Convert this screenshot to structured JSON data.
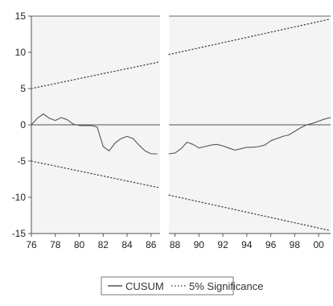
{
  "chart_data": {
    "type": "line",
    "title": "",
    "xlabel": "",
    "ylabel": "",
    "xlim": [
      1976,
      2001
    ],
    "ylim": [
      -15,
      15
    ],
    "gap": [
      1986.75,
      1987.5
    ],
    "x_ticks": [
      {
        "value": 1976,
        "label": "76"
      },
      {
        "value": 1978,
        "label": "78"
      },
      {
        "value": 1980,
        "label": "80"
      },
      {
        "value": 1982,
        "label": "82"
      },
      {
        "value": 1984,
        "label": "84"
      },
      {
        "value": 1986,
        "label": "86"
      },
      {
        "value": 1988,
        "label": "88"
      },
      {
        "value": 1990,
        "label": "90"
      },
      {
        "value": 1992,
        "label": "92"
      },
      {
        "value": 1994,
        "label": "94"
      },
      {
        "value": 1996,
        "label": "96"
      },
      {
        "value": 1998,
        "label": "98"
      },
      {
        "value": 2000,
        "label": "00"
      }
    ],
    "y_ticks": [
      {
        "value": -15,
        "label": "-15"
      },
      {
        "value": -10,
        "label": "-10"
      },
      {
        "value": -5,
        "label": "-5"
      },
      {
        "value": 0,
        "label": "0"
      },
      {
        "value": 5,
        "label": "5"
      },
      {
        "value": 10,
        "label": "10"
      },
      {
        "value": 15,
        "label": "15"
      }
    ],
    "series": [
      {
        "name": "CUSUM",
        "style": "solid",
        "color": "#555555",
        "segments": [
          {
            "x": [
              1976.0,
              1976.5,
              1977.0,
              1977.5,
              1978.0,
              1978.5,
              1979.0,
              1979.5,
              1980.0,
              1980.5,
              1981.0,
              1981.5,
              1982.0,
              1982.5,
              1983.0,
              1983.5,
              1984.0,
              1984.5,
              1985.0,
              1985.5,
              1986.0,
              1986.5
            ],
            "y": [
              0.0,
              0.9,
              1.5,
              0.9,
              0.6,
              1.0,
              0.7,
              0.1,
              -0.1,
              -0.1,
              -0.1,
              -0.3,
              -3.0,
              -3.6,
              -2.5,
              -1.9,
              -1.6,
              -1.9,
              -2.8,
              -3.6,
              -4.0,
              -4.0
            ]
          },
          {
            "x": [
              1987.5,
              1988.0,
              1988.5,
              1989.0,
              1989.5,
              1990.0,
              1990.5,
              1991.0,
              1991.5,
              1992.0,
              1992.5,
              1993.0,
              1993.5,
              1994.0,
              1994.5,
              1995.0,
              1995.5,
              1996.0,
              1996.5,
              1997.0,
              1997.5,
              1998.0,
              1998.5,
              1999.0,
              1999.5,
              2000.0,
              2000.5,
              2001.0
            ],
            "y": [
              -4.0,
              -3.9,
              -3.3,
              -2.4,
              -2.7,
              -3.2,
              -3.0,
              -2.8,
              -2.7,
              -2.9,
              -3.2,
              -3.5,
              -3.3,
              -3.1,
              -3.1,
              -3.0,
              -2.8,
              -2.2,
              -1.9,
              -1.6,
              -1.4,
              -0.9,
              -0.4,
              0.0,
              0.2,
              0.5,
              0.8,
              1.0
            ]
          }
        ]
      },
      {
        "name": "5% Significance",
        "style": "dotted",
        "color": "#444444",
        "segments": [
          {
            "x": [
              1976,
              1986.75
            ],
            "y": [
              5.0,
              8.7
            ]
          },
          {
            "x": [
              1987.5,
              2001
            ],
            "y": [
              9.7,
              14.6
            ]
          }
        ]
      },
      {
        "name": "5% Significance",
        "style": "dotted",
        "color": "#444444",
        "segments": [
          {
            "x": [
              1976,
              1986.75
            ],
            "y": [
              -5.0,
              -8.7
            ]
          },
          {
            "x": [
              1987.5,
              2001
            ],
            "y": [
              -9.7,
              -14.6
            ]
          }
        ]
      }
    ],
    "legend": {
      "position": "bottom",
      "items": [
        {
          "label": "CUSUM",
          "style": "solid"
        },
        {
          "label": "5% Significance",
          "style": "dotted"
        }
      ]
    }
  }
}
